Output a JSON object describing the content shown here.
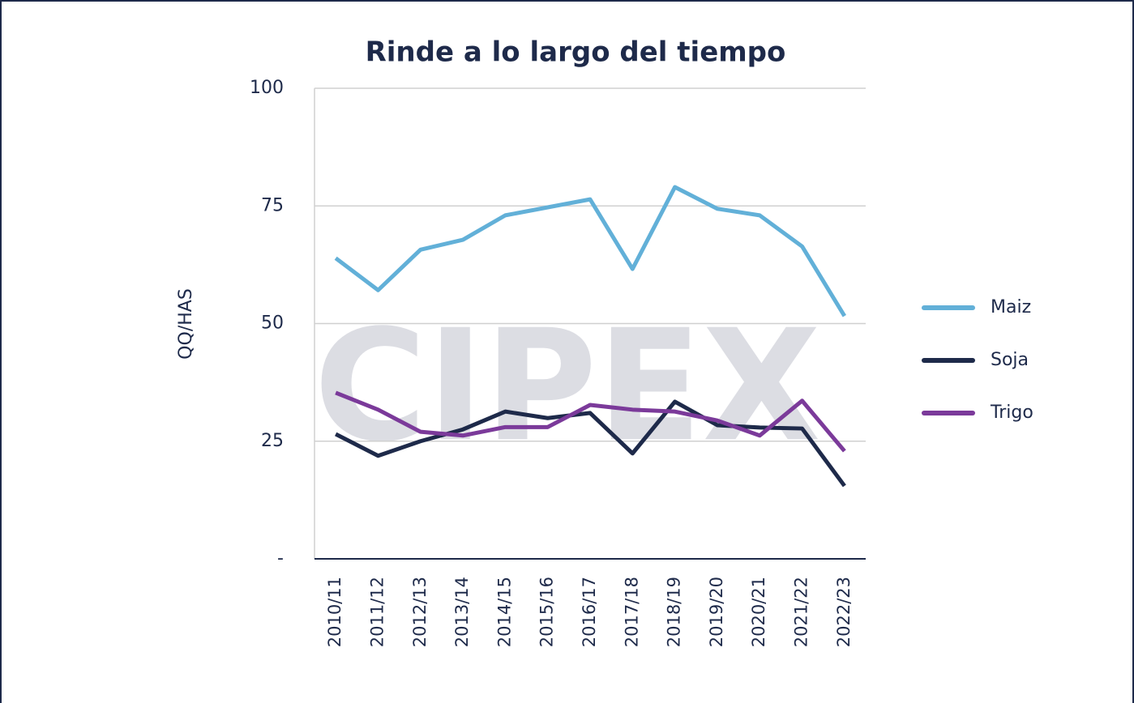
{
  "chart_data": {
    "type": "line",
    "title": "Rinde a lo largo del tiempo",
    "y_label": "QQ/HAS",
    "watermark": "CIPEX",
    "categories": [
      "2010/11",
      "2011/12",
      "2012/13",
      "2013/14",
      "2014/15",
      "2015/16",
      "2016/17",
      "2017/18",
      "2018/19",
      "2019/20",
      "2020/21",
      "2021/22",
      "2022/23"
    ],
    "series": [
      {
        "name": "Maiz",
        "color": "#62b0d8",
        "values": [
          63.9,
          57.1,
          65.7,
          67.8,
          73,
          74.7,
          76.4,
          61.6,
          79,
          74.4,
          73,
          66.4,
          51.6
        ]
      },
      {
        "name": "Soja",
        "color": "#1e2a4a",
        "values": [
          26.5,
          21.9,
          25,
          27.5,
          31.3,
          29.9,
          31,
          22.4,
          33.4,
          28.4,
          27.9,
          27.7,
          15.5
        ]
      },
      {
        "name": "Trigo",
        "color": "#7b3a9a",
        "values": [
          35.3,
          31.7,
          27,
          26.2,
          28,
          28,
          32.7,
          31.7,
          31.3,
          29.4,
          26.2,
          33.6,
          22.9
        ]
      }
    ],
    "ylim": [
      0,
      100
    ],
    "yticks": [
      {
        "value": 0,
        "label": "-"
      },
      25,
      50,
      75,
      100
    ],
    "grid": true,
    "legend": "right"
  }
}
